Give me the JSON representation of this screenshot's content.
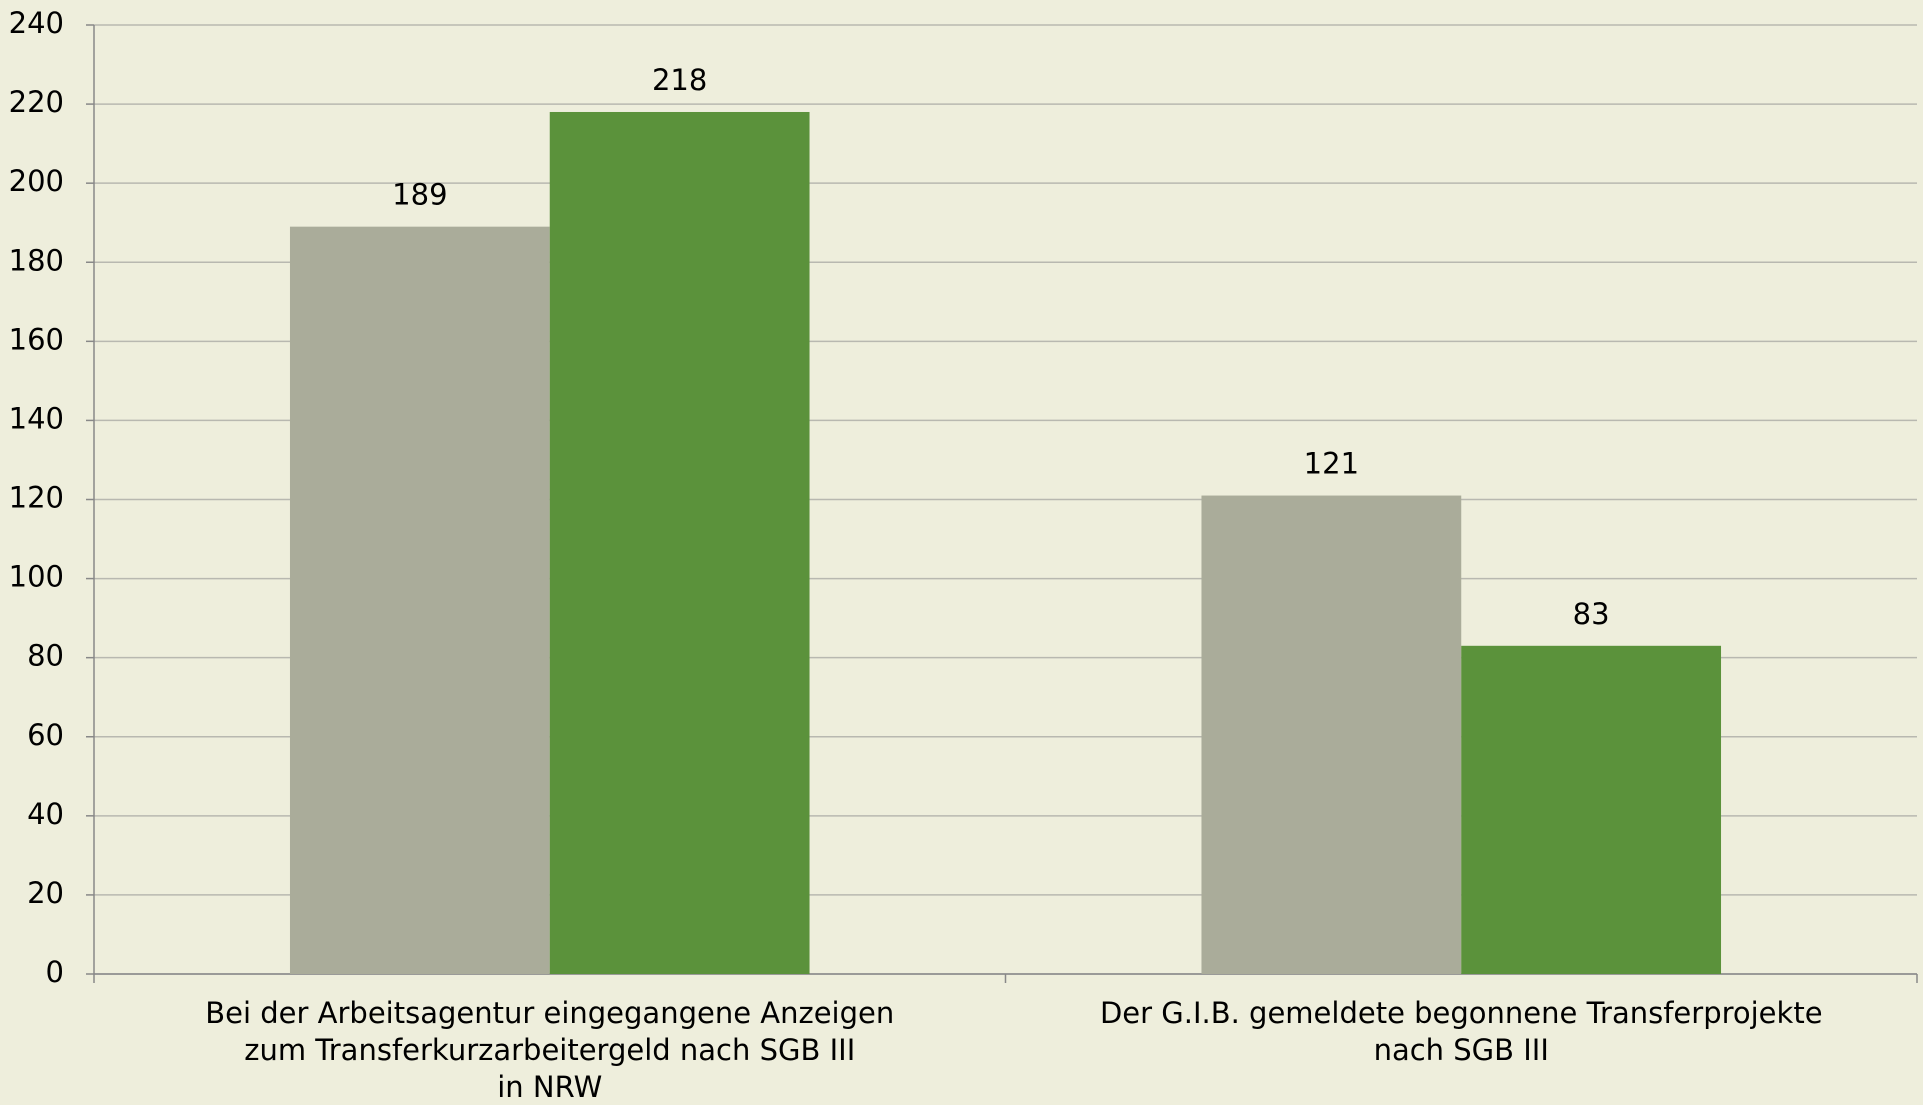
{
  "chart_data": {
    "type": "bar",
    "categories": [
      "Bei der Arbeitsagentur eingegangene Anzeigen\nzum Transferkurzarbeitergeld nach SGB III\nin NRW",
      "Der G.I.B. gemeldete begonnene Transferprojekte\nnach SGB III"
    ],
    "series": [
      {
        "color": "#aaac9a",
        "values": [
          189,
          121
        ]
      },
      {
        "color": "#5b923b",
        "values": [
          218,
          83
        ]
      }
    ],
    "ylim": [
      0,
      240
    ],
    "yticks": [
      0,
      20,
      40,
      60,
      80,
      100,
      120,
      140,
      160,
      180,
      200,
      220,
      240
    ],
    "grid": true
  }
}
